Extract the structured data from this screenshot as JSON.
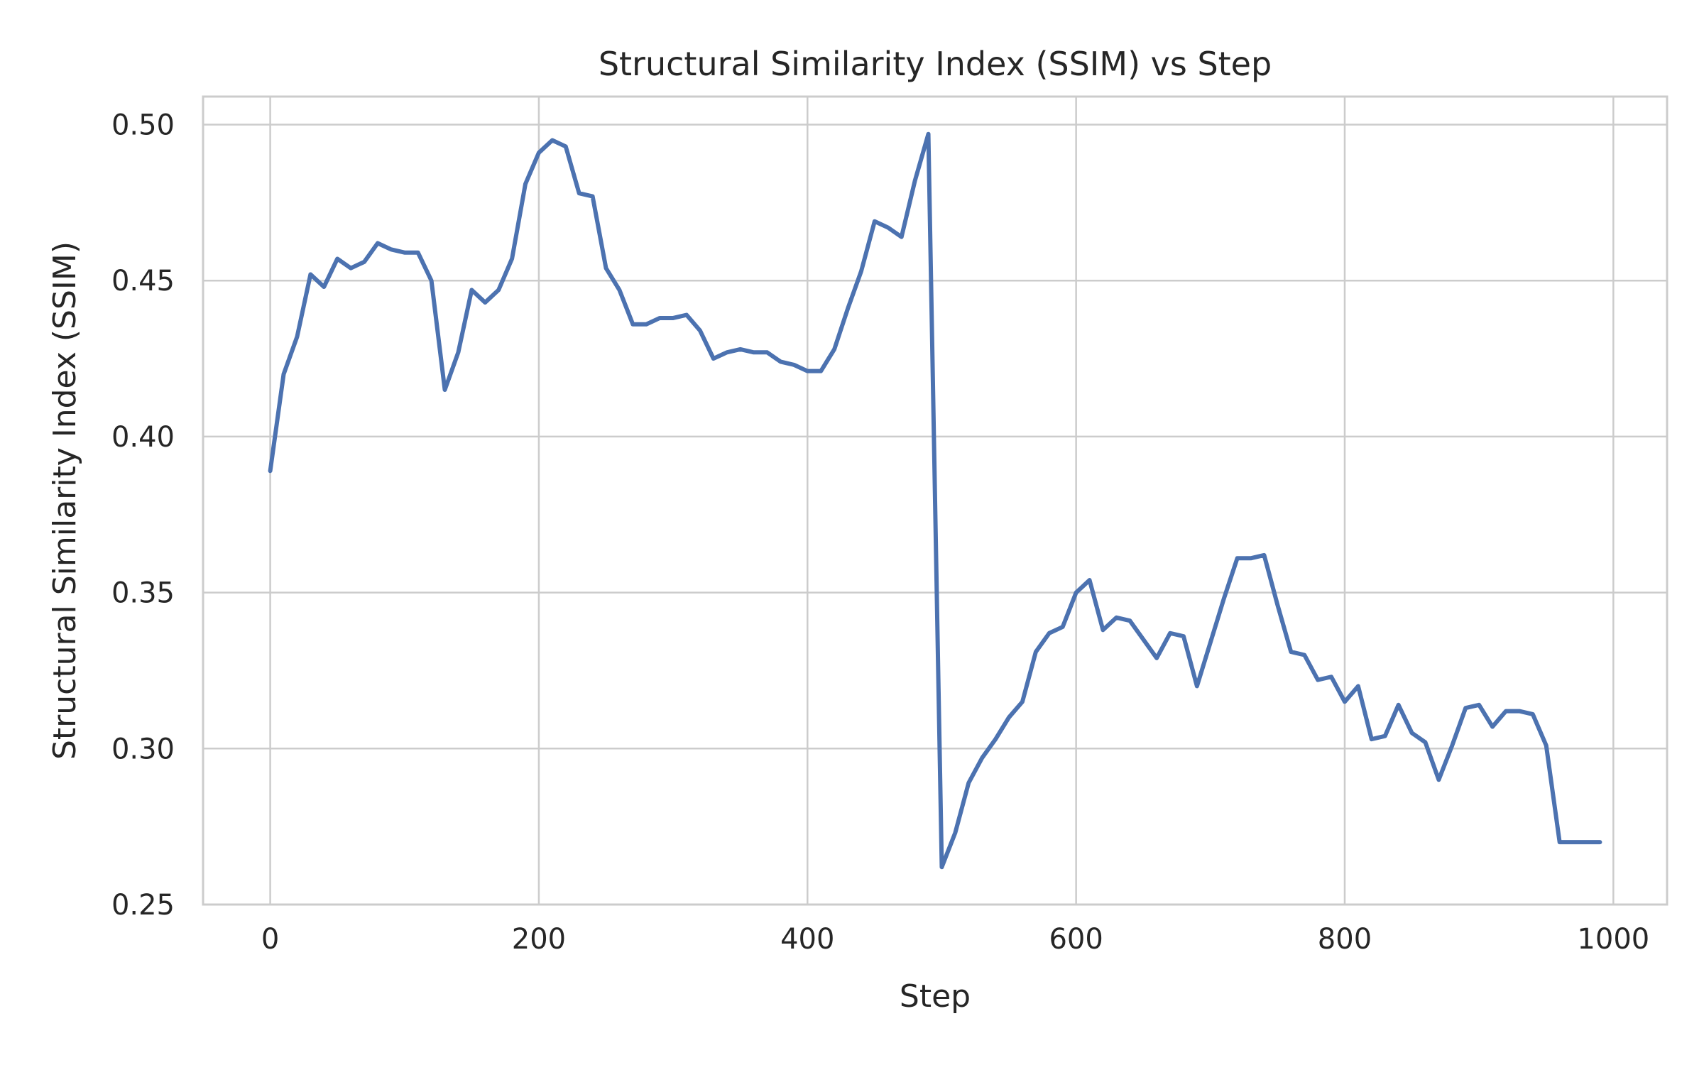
{
  "chart_data": {
    "type": "line",
    "title": "Structural Similarity Index (SSIM) vs Step",
    "xlabel": "Step",
    "ylabel": "Structural Similarity Index (SSIM)",
    "xlim": [
      -50,
      1040
    ],
    "ylim": [
      0.25,
      0.509
    ],
    "x_ticks": [
      0,
      200,
      400,
      600,
      800,
      1000
    ],
    "y_ticks": [
      0.25,
      0.3,
      0.35,
      0.4,
      0.45,
      0.5
    ],
    "x_tick_labels": [
      "0",
      "200",
      "400",
      "600",
      "800",
      "1000"
    ],
    "y_tick_labels": [
      "0.25",
      "0.30",
      "0.35",
      "0.40",
      "0.45",
      "0.50"
    ],
    "grid": true,
    "series": [
      {
        "color": "#4c72b0",
        "x": [
          0,
          10,
          20,
          30,
          40,
          50,
          60,
          70,
          80,
          90,
          100,
          110,
          120,
          130,
          140,
          150,
          160,
          170,
          180,
          190,
          200,
          210,
          220,
          230,
          240,
          250,
          260,
          270,
          280,
          290,
          300,
          310,
          320,
          330,
          340,
          350,
          360,
          370,
          380,
          390,
          400,
          410,
          420,
          430,
          440,
          450,
          460,
          470,
          480,
          490,
          500,
          510,
          520,
          530,
          540,
          550,
          560,
          570,
          580,
          590,
          600,
          610,
          620,
          630,
          640,
          650,
          660,
          670,
          680,
          690,
          700,
          710,
          720,
          730,
          740,
          750,
          760,
          770,
          780,
          790,
          800,
          810,
          820,
          830,
          840,
          850,
          860,
          870,
          880,
          890,
          900,
          910,
          920,
          930,
          940,
          950,
          960,
          970,
          980,
          990
        ],
        "y": [
          0.389,
          0.42,
          0.432,
          0.452,
          0.448,
          0.457,
          0.454,
          0.456,
          0.462,
          0.46,
          0.459,
          0.459,
          0.45,
          0.415,
          0.427,
          0.447,
          0.443,
          0.447,
          0.457,
          0.481,
          0.491,
          0.495,
          0.493,
          0.478,
          0.477,
          0.454,
          0.447,
          0.436,
          0.436,
          0.438,
          0.438,
          0.439,
          0.434,
          0.425,
          0.427,
          0.428,
          0.427,
          0.427,
          0.424,
          0.423,
          0.421,
          0.421,
          0.428,
          0.441,
          0.453,
          0.469,
          0.467,
          0.464,
          0.482,
          0.497,
          0.262,
          0.273,
          0.289,
          0.297,
          0.303,
          0.31,
          0.315,
          0.331,
          0.337,
          0.339,
          0.35,
          0.354,
          0.338,
          0.342,
          0.341,
          0.335,
          0.329,
          0.337,
          0.336,
          0.32,
          0.334,
          0.348,
          0.361,
          0.361,
          0.362,
          0.346,
          0.331,
          0.33,
          0.322,
          0.323,
          0.315,
          0.32,
          0.303,
          0.304,
          0.314,
          0.305,
          0.302,
          0.29,
          0.301,
          0.313,
          0.314,
          0.307,
          0.312,
          0.312,
          0.311,
          0.301,
          0.27,
          0.27,
          0.27,
          0.27
        ]
      }
    ]
  }
}
